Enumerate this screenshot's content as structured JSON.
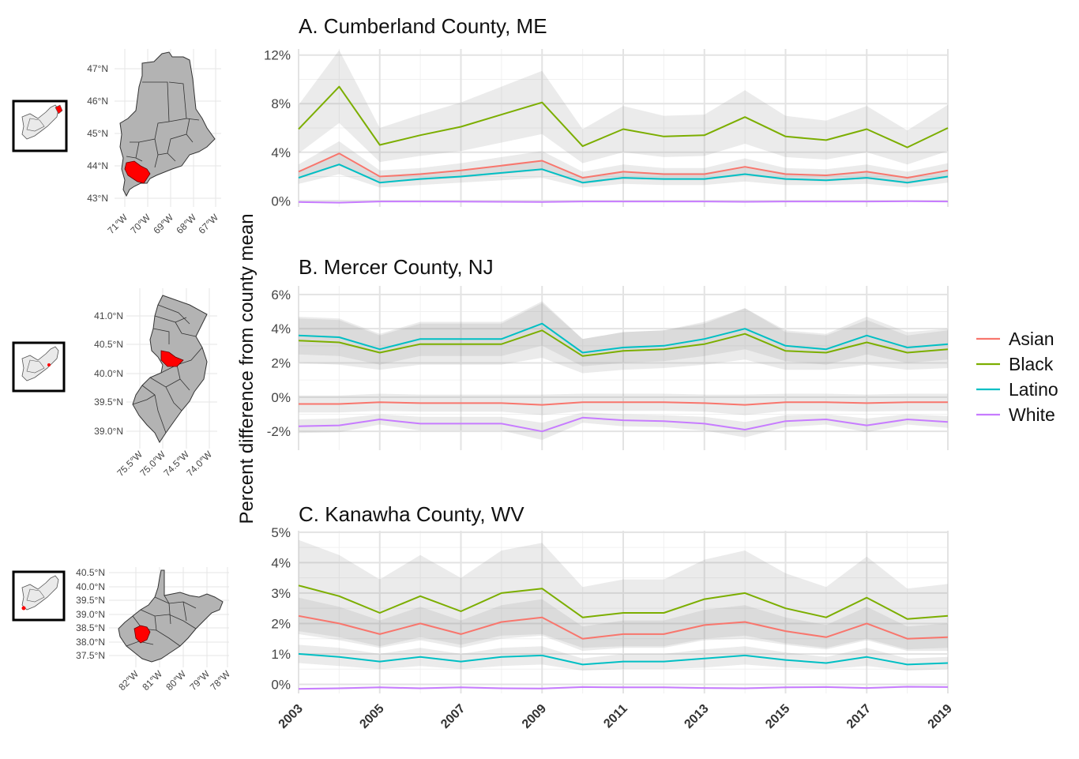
{
  "y_axis_label": "Percent difference from county mean",
  "legend": [
    {
      "label": "Asian",
      "color": "#F8766D"
    },
    {
      "label": "Black",
      "color": "#7CAE00"
    },
    {
      "label": "Latino",
      "color": "#00BFC4"
    },
    {
      "label": "White",
      "color": "#C77CFF"
    }
  ],
  "x_tick_labels": [
    "2003",
    "2005",
    "2007",
    "2009",
    "2011",
    "2013",
    "2015",
    "2017",
    "2019"
  ],
  "maps": [
    {
      "state": "ME",
      "lat_labels": [
        "47°N",
        "46°N",
        "45°N",
        "44°N",
        "43°N"
      ],
      "lon_labels": [
        "71°W",
        "70°W",
        "69°W",
        "68°W",
        "67°W"
      ],
      "highlight_color": "#FF0000"
    },
    {
      "state": "NJ",
      "lat_labels": [
        "41.0°N",
        "40.5°N",
        "40.0°N",
        "39.5°N",
        "39.0°N"
      ],
      "lon_labels": [
        "75.5°W",
        "75.0°W",
        "74.5°W",
        "74.0°W"
      ],
      "highlight_color": "#FF0000"
    },
    {
      "state": "WV",
      "lat_labels": [
        "40.5°N",
        "40.0°N",
        "39.5°N",
        "39.0°N",
        "38.5°N",
        "38.0°N",
        "37.5°N"
      ],
      "lon_labels": [
        "82°W",
        "81°W",
        "80°W",
        "79°W",
        "78°W"
      ],
      "highlight_color": "#FF0000"
    }
  ],
  "chart_data": [
    {
      "type": "line",
      "title": "A. Cumberland County, ME",
      "x": [
        2003,
        2004,
        2005,
        2006,
        2007,
        2008,
        2009,
        2010,
        2011,
        2012,
        2013,
        2014,
        2015,
        2016,
        2017,
        2018,
        2019
      ],
      "ylim": [
        -0.5,
        12.5
      ],
      "y_ticks": [
        0,
        4,
        8,
        12
      ],
      "y_tick_labels": [
        "0%",
        "4%",
        "8%",
        "12%"
      ],
      "series": [
        {
          "name": "Asian",
          "color": "#F8766D",
          "values": [
            2.4,
            3.9,
            2.0,
            2.2,
            2.5,
            2.9,
            3.3,
            1.9,
            2.4,
            2.2,
            2.2,
            2.8,
            2.2,
            2.1,
            2.4,
            1.9,
            2.5
          ],
          "ci_halfwidth": [
            0.6,
            1.0,
            0.5,
            0.5,
            0.6,
            0.7,
            0.8,
            0.5,
            0.6,
            0.5,
            0.5,
            0.7,
            0.5,
            0.5,
            0.6,
            0.5,
            0.6
          ]
        },
        {
          "name": "Black",
          "color": "#7CAE00",
          "values": [
            5.9,
            9.4,
            4.6,
            5.4,
            6.1,
            7.1,
            8.1,
            4.5,
            5.9,
            5.3,
            5.4,
            6.9,
            5.3,
            5.0,
            5.9,
            4.4,
            6.0
          ],
          "ci_halfwidth": [
            2.0,
            3.0,
            1.4,
            1.7,
            2.0,
            2.3,
            2.6,
            1.4,
            1.9,
            1.7,
            1.7,
            2.2,
            1.7,
            1.6,
            1.9,
            1.4,
            1.9
          ]
        },
        {
          "name": "Latino",
          "color": "#00BFC4",
          "values": [
            1.9,
            3.0,
            1.5,
            1.8,
            2.0,
            2.3,
            2.6,
            1.5,
            1.9,
            1.8,
            1.8,
            2.2,
            1.8,
            1.7,
            1.9,
            1.5,
            2.0
          ],
          "ci_halfwidth": [
            0.5,
            0.8,
            0.4,
            0.5,
            0.5,
            0.6,
            0.7,
            0.4,
            0.5,
            0.5,
            0.5,
            0.6,
            0.5,
            0.4,
            0.5,
            0.4,
            0.5
          ]
        },
        {
          "name": "White",
          "color": "#C77CFF",
          "values": [
            -0.1,
            -0.15,
            -0.05,
            -0.05,
            -0.06,
            -0.08,
            -0.1,
            -0.05,
            -0.05,
            -0.05,
            -0.05,
            -0.08,
            -0.05,
            -0.05,
            -0.05,
            -0.03,
            -0.05
          ],
          "ci_halfwidth": [
            0.05,
            0.05,
            0.05,
            0.05,
            0.05,
            0.05,
            0.05,
            0.05,
            0.05,
            0.05,
            0.05,
            0.05,
            0.05,
            0.05,
            0.05,
            0.05,
            0.05
          ]
        }
      ]
    },
    {
      "type": "line",
      "title": "B. Mercer County, NJ",
      "x": [
        2003,
        2004,
        2005,
        2006,
        2007,
        2008,
        2009,
        2010,
        2011,
        2012,
        2013,
        2014,
        2015,
        2016,
        2017,
        2018,
        2019
      ],
      "ylim": [
        -3.1,
        6.5
      ],
      "y_ticks": [
        -2,
        0,
        2,
        4,
        6
      ],
      "y_tick_labels": [
        "-2%",
        "0%",
        "2%",
        "4%",
        "6%"
      ],
      "series": [
        {
          "name": "Asian",
          "color": "#F8766D",
          "values": [
            -0.4,
            -0.4,
            -0.3,
            -0.35,
            -0.35,
            -0.35,
            -0.45,
            -0.3,
            -0.3,
            -0.3,
            -0.35,
            -0.45,
            -0.3,
            -0.3,
            -0.35,
            -0.3,
            -0.3
          ],
          "ci_halfwidth": [
            0.5,
            0.5,
            0.5,
            0.5,
            0.5,
            0.5,
            0.6,
            0.5,
            0.5,
            0.5,
            0.5,
            0.6,
            0.5,
            0.5,
            0.5,
            0.5,
            0.5
          ]
        },
        {
          "name": "Black",
          "color": "#7CAE00",
          "values": [
            3.3,
            3.2,
            2.6,
            3.1,
            3.1,
            3.1,
            3.9,
            2.4,
            2.7,
            2.8,
            3.1,
            3.7,
            2.7,
            2.6,
            3.2,
            2.6,
            2.8
          ],
          "ci_halfwidth": [
            1.3,
            1.3,
            1.0,
            1.2,
            1.2,
            1.2,
            1.6,
            1.0,
            1.1,
            1.1,
            1.2,
            1.5,
            1.1,
            1.0,
            1.3,
            1.0,
            1.1
          ]
        },
        {
          "name": "Latino",
          "color": "#00BFC4",
          "values": [
            3.6,
            3.5,
            2.8,
            3.4,
            3.4,
            3.4,
            4.3,
            2.6,
            2.9,
            3.0,
            3.4,
            4.0,
            3.0,
            2.8,
            3.6,
            2.9,
            3.1
          ],
          "ci_halfwidth": [
            1.1,
            1.1,
            0.9,
            1.0,
            1.0,
            1.0,
            1.3,
            0.8,
            0.9,
            0.9,
            1.0,
            1.2,
            0.9,
            0.9,
            1.1,
            0.9,
            0.9
          ]
        },
        {
          "name": "White",
          "color": "#C77CFF",
          "values": [
            -1.7,
            -1.65,
            -1.3,
            -1.55,
            -1.55,
            -1.55,
            -2.0,
            -1.2,
            -1.35,
            -1.4,
            -1.55,
            -1.9,
            -1.4,
            -1.3,
            -1.65,
            -1.3,
            -1.45
          ],
          "ci_halfwidth": [
            0.4,
            0.4,
            0.3,
            0.4,
            0.4,
            0.4,
            0.5,
            0.3,
            0.35,
            0.35,
            0.4,
            0.45,
            0.35,
            0.3,
            0.4,
            0.3,
            0.35
          ]
        }
      ]
    },
    {
      "type": "line",
      "title": "C. Kanawha County, WV",
      "x": [
        2003,
        2004,
        2005,
        2006,
        2007,
        2008,
        2009,
        2010,
        2011,
        2012,
        2013,
        2014,
        2015,
        2016,
        2017,
        2018,
        2019
      ],
      "ylim": [
        -0.3,
        5.05
      ],
      "y_ticks": [
        0,
        1,
        2,
        3,
        4,
        5
      ],
      "y_tick_labels": [
        "0%",
        "1%",
        "2%",
        "3%",
        "4%",
        "5%"
      ],
      "series": [
        {
          "name": "Asian",
          "color": "#F8766D",
          "values": [
            2.25,
            2.0,
            1.65,
            2.0,
            1.65,
            2.05,
            2.2,
            1.5,
            1.65,
            1.65,
            1.95,
            2.05,
            1.75,
            1.55,
            2.0,
            1.5,
            1.55
          ],
          "ci_halfwidth": [
            0.6,
            0.55,
            0.45,
            0.55,
            0.45,
            0.55,
            0.6,
            0.4,
            0.45,
            0.45,
            0.5,
            0.55,
            0.45,
            0.4,
            0.55,
            0.4,
            0.45
          ]
        },
        {
          "name": "Black",
          "color": "#7CAE00",
          "values": [
            3.25,
            2.9,
            2.35,
            2.9,
            2.4,
            3.0,
            3.15,
            2.2,
            2.35,
            2.35,
            2.8,
            3.0,
            2.5,
            2.2,
            2.85,
            2.15,
            2.25
          ],
          "ci_halfwidth": [
            1.5,
            1.35,
            1.1,
            1.35,
            1.1,
            1.4,
            1.5,
            1.0,
            1.1,
            1.1,
            1.3,
            1.4,
            1.15,
            1.0,
            1.35,
            1.0,
            1.05
          ]
        },
        {
          "name": "Latino",
          "color": "#00BFC4",
          "values": [
            1.0,
            0.9,
            0.75,
            0.9,
            0.75,
            0.9,
            0.95,
            0.65,
            0.75,
            0.75,
            0.85,
            0.95,
            0.8,
            0.7,
            0.9,
            0.65,
            0.7
          ],
          "ci_halfwidth": [
            0.3,
            0.3,
            0.25,
            0.3,
            0.25,
            0.3,
            0.3,
            0.2,
            0.25,
            0.25,
            0.3,
            0.3,
            0.25,
            0.2,
            0.3,
            0.2,
            0.2
          ]
        },
        {
          "name": "White",
          "color": "#C77CFF",
          "values": [
            -0.15,
            -0.13,
            -0.1,
            -0.13,
            -0.1,
            -0.13,
            -0.14,
            -0.09,
            -0.1,
            -0.1,
            -0.12,
            -0.13,
            -0.1,
            -0.09,
            -0.12,
            -0.08,
            -0.09
          ],
          "ci_halfwidth": [
            0.03,
            0.03,
            0.03,
            0.03,
            0.03,
            0.03,
            0.03,
            0.03,
            0.03,
            0.03,
            0.03,
            0.03,
            0.03,
            0.03,
            0.03,
            0.03,
            0.03
          ]
        }
      ]
    }
  ]
}
